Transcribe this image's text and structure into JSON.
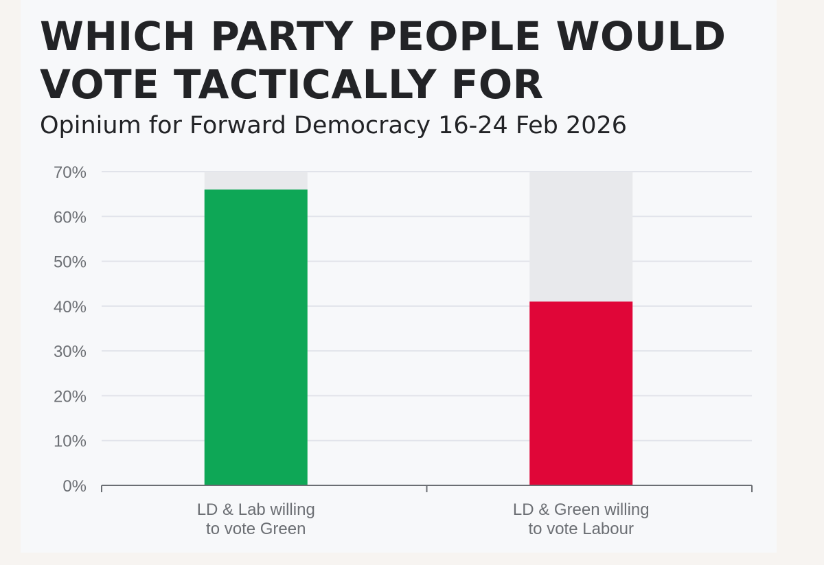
{
  "title_lines": [
    "WHICH PARTY PEOPLE WOULD",
    "VOTE TACTICALLY FOR"
  ],
  "subtitle": "Opinium for Forward Democracy 16-24 Feb 2026",
  "chart_data": {
    "type": "bar",
    "title": "WHICH PARTY PEOPLE WOULD VOTE TACTICALLY FOR",
    "subtitle": "Opinium for Forward Democracy 16-24 Feb 2026",
    "categories": [
      [
        "LD & Lab willing",
        "to vote Green"
      ],
      [
        "LD & Green willing",
        "to vote Labour"
      ]
    ],
    "values": [
      66,
      41
    ],
    "colors": [
      "#0ea756",
      "#e00638"
    ],
    "background_bar_color": "#e8e9ec",
    "ylim": [
      0,
      70
    ],
    "yticks": [
      "0%",
      "10%",
      "20%",
      "30%",
      "40%",
      "50%",
      "60%",
      "70%"
    ],
    "grid": true,
    "xlabel": "",
    "ylabel": ""
  }
}
